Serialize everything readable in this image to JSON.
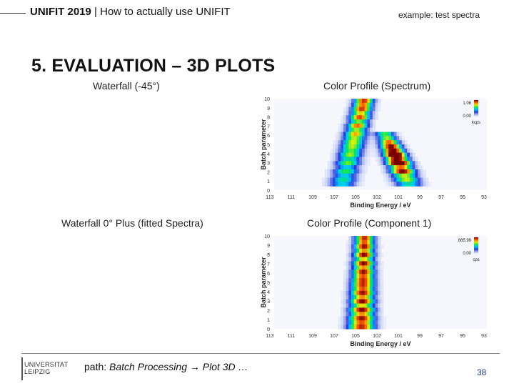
{
  "header": {
    "title_bold": "UNIFIT 2019",
    "title_rest": " | How to actually use UNIFIT",
    "right_text": "example: test spectra"
  },
  "section_title": "5. EVALUATION – 3D PLOTS",
  "labels": {
    "waterfall_45": "Waterfall (-45°)",
    "color_profile_spectrum": "Color Profile (Spectrum)",
    "waterfall_0": "Waterfall 0° Plus (fitted Spectra)",
    "color_profile_component": "Color Profile (Component 1)"
  },
  "footer": {
    "logo_line1": "UNIVERSITAT",
    "logo_line2": "LEIPZIG",
    "path_prefix": "path: ",
    "path_italic": "Batch Processing → Plot 3D …",
    "page_number": "38"
  },
  "chart_data": [
    {
      "type": "heatmap",
      "title": "Color Profile (Spectrum)",
      "xlabel": "Binding Energy / eV",
      "ylabel": "Batch parameter",
      "x_ticks": [
        "113",
        "111",
        "109",
        "107",
        "105",
        "102",
        "101",
        "99",
        "97",
        "95",
        "93"
      ],
      "y_ticks": [
        "0",
        "1",
        "2",
        "3",
        "4",
        "5",
        "6",
        "7",
        "8",
        "9",
        "10"
      ],
      "xlim": [
        113,
        93
      ],
      "ylim": [
        0,
        10
      ],
      "colorbar": {
        "max_label": "1.06",
        "min_label": "0.00",
        "unit": "kcps"
      },
      "peaks": [
        {
          "name": "main",
          "x_start": 104.5,
          "x_end": 106.5,
          "y_from": 10,
          "y_to": 1
        },
        {
          "name": "second",
          "x_start": 102.5,
          "x_end": 100.5,
          "y_from": 6,
          "y_to": 1
        }
      ]
    },
    {
      "type": "heatmap",
      "title": "Color Profile (Component 1)",
      "xlabel": "Binding Energy / eV",
      "ylabel": "Batch parameter",
      "x_ticks": [
        "113",
        "111",
        "109",
        "107",
        "105",
        "102",
        "101",
        "99",
        "97",
        "95",
        "93"
      ],
      "y_ticks": [
        "0",
        "1",
        "2",
        "3",
        "4",
        "5",
        "6",
        "7",
        "8",
        "9",
        "10"
      ],
      "xlim": [
        113,
        93
      ],
      "ylim": [
        0,
        10
      ],
      "colorbar": {
        "max_label": "885.99",
        "min_label": "0.00",
        "unit": "cps"
      },
      "peaks": [
        {
          "name": "component-1",
          "x_start": 104.5,
          "x_end": 104.8,
          "y_from": 10,
          "y_to": 0
        }
      ]
    }
  ]
}
